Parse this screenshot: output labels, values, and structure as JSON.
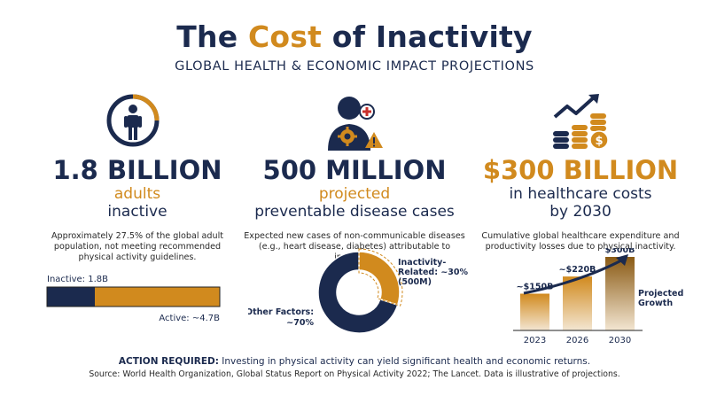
{
  "header": {
    "title_pre": "The ",
    "title_accent": "Cost",
    "title_post": " of Inactivity",
    "subtitle": "GLOBAL HEALTH & ECONOMIC IMPACT PROJECTIONS"
  },
  "colors": {
    "navy": "#1b2a4e",
    "gold": "#d18a1e",
    "light_gold": "#f3e6d2"
  },
  "stats": [
    {
      "icon": "person-icon",
      "value": "1.8 BILLION",
      "line1": "adults",
      "line2": "inactive",
      "description": [
        "Approximately 27.5% of the global adult",
        "population, not meeting recommended",
        "physical activity guidelines."
      ]
    },
    {
      "icon": "health-risk-icon",
      "value": "500 MILLION",
      "line1": "projected",
      "line2": "preventable disease cases",
      "description": [
        "Expected new cases of non-communicable diseases",
        "(e.g., heart disease, diabetes) attributable to inactivity."
      ]
    },
    {
      "icon": "money-growth-icon",
      "value": "$300 BILLION",
      "line1": "in healthcare costs",
      "line2": "by 2030",
      "description": [
        "Cumulative global healthcare expenditure and",
        "productivity losses due to physical inactivity."
      ]
    }
  ],
  "chart_data": [
    {
      "type": "bar",
      "orientation": "horizontal-stacked",
      "series": [
        {
          "name": "Inactive: 1.8B",
          "value": 1.8
        },
        {
          "name": "Active: ~4.7B",
          "value": 4.7
        }
      ]
    },
    {
      "type": "pie",
      "style": "donut",
      "slices": [
        {
          "label": [
            "Inactivity-",
            "Related: ~30%",
            "(500M)"
          ],
          "value": 30
        },
        {
          "label": [
            "Other Factors:",
            "~70%"
          ],
          "value": 70
        }
      ]
    },
    {
      "type": "bar",
      "categories": [
        "2023",
        "2026",
        "2030"
      ],
      "values": [
        150,
        220,
        300
      ],
      "data_labels": [
        "~$150B",
        "~$220B",
        "$300B"
      ],
      "annotation": [
        "Projected",
        "Growth"
      ],
      "ylim": [
        0,
        300
      ]
    }
  ],
  "footer": {
    "action_label": "ACTION REQUIRED:",
    "action_text": " Investing in physical activity can yield significant health and economic returns.",
    "source": "Source: World Health Organization, Global Status Report on Physical Activity 2022; The Lancet. Data is illustrative of projections."
  }
}
